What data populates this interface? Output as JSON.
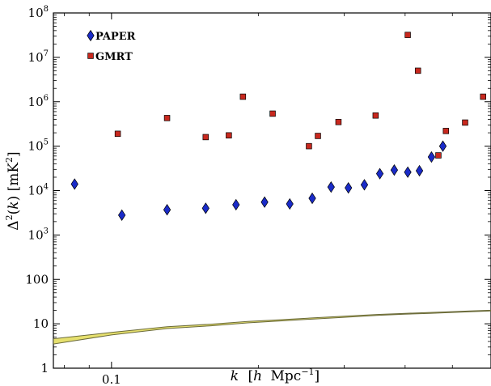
{
  "chart_data": {
    "type": "scatter",
    "title": "",
    "xlabel_parts": [
      "k",
      "[",
      "h",
      "Mpc",
      "−1",
      "]"
    ],
    "ylabel_parts": [
      "Δ",
      "2",
      "(",
      "k",
      ") [mK",
      "2",
      "]"
    ],
    "x_scale": "log",
    "y_scale": "log",
    "xlim": [
      0.076,
      0.6
    ],
    "ylim": [
      1,
      100000000
    ],
    "x_ticks": [
      {
        "value": 0.1,
        "label": "0.1"
      }
    ],
    "y_ticks": [
      {
        "value": 1,
        "label": "1",
        "exp": ""
      },
      {
        "value": 10,
        "label": "10",
        "exp": ""
      },
      {
        "value": 100,
        "label": "100",
        "exp": ""
      },
      {
        "value": 1000,
        "label": "10",
        "exp": "3"
      },
      {
        "value": 10000,
        "label": "10",
        "exp": "4"
      },
      {
        "value": 100000,
        "label": "10",
        "exp": "5"
      },
      {
        "value": 1000000,
        "label": "10",
        "exp": "6"
      },
      {
        "value": 10000000,
        "label": "10",
        "exp": "7"
      },
      {
        "value": 100000000,
        "label": "10",
        "exp": "8"
      }
    ],
    "legend": {
      "position": "top-left"
    },
    "series": [
      {
        "name": "PAPER",
        "marker": "diamond",
        "color": "#1a2bc8",
        "points": [
          [
            0.084,
            14000
          ],
          [
            0.105,
            2800
          ],
          [
            0.13,
            3700
          ],
          [
            0.156,
            4000
          ],
          [
            0.18,
            4800
          ],
          [
            0.206,
            5500
          ],
          [
            0.232,
            5000
          ],
          [
            0.258,
            6700
          ],
          [
            0.282,
            12000
          ],
          [
            0.306,
            11500
          ],
          [
            0.33,
            13500
          ],
          [
            0.355,
            24000
          ],
          [
            0.38,
            29000
          ],
          [
            0.405,
            26000
          ],
          [
            0.428,
            28000
          ],
          [
            0.453,
            57000
          ],
          [
            0.478,
            100000
          ]
        ]
      },
      {
        "name": "GMRT",
        "marker": "square",
        "color": "#c8281e",
        "points": [
          [
            0.103,
            190000
          ],
          [
            0.13,
            430000
          ],
          [
            0.156,
            160000
          ],
          [
            0.174,
            175000
          ],
          [
            0.186,
            1300000
          ],
          [
            0.214,
            540000
          ],
          [
            0.254,
            100000
          ],
          [
            0.265,
            170000
          ],
          [
            0.292,
            350000
          ],
          [
            0.348,
            490000
          ],
          [
            0.405,
            32000000
          ],
          [
            0.425,
            5000000
          ],
          [
            0.468,
            62000
          ],
          [
            0.485,
            220000
          ],
          [
            0.531,
            340000
          ],
          [
            0.578,
            1300000
          ]
        ]
      }
    ],
    "band": {
      "color": "#e6e06e",
      "edge_color": "#6b6b3a",
      "x": [
        0.076,
        0.1,
        0.13,
        0.16,
        0.19,
        0.22,
        0.26,
        0.3,
        0.35,
        0.4,
        0.45,
        0.5,
        0.55,
        0.6
      ],
      "lower": [
        3.5,
        5.6,
        7.8,
        9.0,
        10.5,
        11.5,
        12.8,
        14.0,
        15.4,
        16.4,
        17.2,
        18.0,
        18.8,
        19.5
      ],
      "upper": [
        4.6,
        6.4,
        8.6,
        9.8,
        11.3,
        12.3,
        13.6,
        14.8,
        16.2,
        17.2,
        18.0,
        18.8,
        19.6,
        20.2
      ]
    }
  }
}
